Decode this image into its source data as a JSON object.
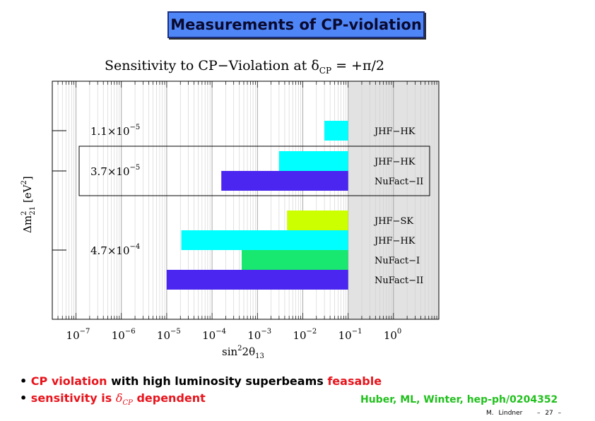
{
  "slide": {
    "title": "Measurements of CP-violation",
    "bullets": [
      {
        "red": "CP violation",
        "black": " with high luminosity superbeams ",
        "red2": "feasable"
      },
      {
        "red": "sensitivity is ",
        "math": "δ",
        "sub": "CP",
        "black": " dependent"
      }
    ],
    "reference": "Huber, ML, Winter, hep-ph/0204352",
    "footer": {
      "author": "M. Lindner",
      "page": "– 27 –"
    }
  },
  "chart_data": {
    "type": "bar",
    "orientation": "horizontal",
    "title": "Sensitivity to CP−Violation at δ",
    "title_sub": "CP",
    "title_rest": " = +π/2",
    "xlabel": "sin",
    "xlabel_sup": "2",
    "xlabel_mid": "2θ",
    "xlabel_sub": "13",
    "ylabel": "Δm",
    "ylabel_sup": "2",
    "ylabel_sub": "21",
    "ylabel_rest": " [eV",
    "ylabel_sup2": "2",
    "ylabel_end": "]",
    "x_scale": "log",
    "xlim": [
      3e-08,
      10
    ],
    "x_ticks": [
      {
        "value": 1e-07,
        "base": "10",
        "exp": "−7"
      },
      {
        "value": 1e-06,
        "base": "10",
        "exp": "−6"
      },
      {
        "value": 1e-05,
        "base": "10",
        "exp": "−5"
      },
      {
        "value": 0.0001,
        "base": "10",
        "exp": "−4"
      },
      {
        "value": 0.001,
        "base": "10",
        "exp": "−3"
      },
      {
        "value": 0.01,
        "base": "10",
        "exp": "−2"
      },
      {
        "value": 0.1,
        "base": "10",
        "exp": "−1"
      },
      {
        "value": 1,
        "base": "10",
        "exp": "0"
      }
    ],
    "shaded_region": {
      "from": 0.1,
      "to": 10,
      "color": "#e2e2e2"
    },
    "grid": true,
    "groups": [
      {
        "label": "1.1×10",
        "exp": "−5",
        "boxed": false,
        "bars": [
          {
            "name": "JHF−HK",
            "min": 0.03,
            "max": 0.1,
            "color": "#00ffff"
          }
        ]
      },
      {
        "label": "3.7×10",
        "exp": "−5",
        "boxed": true,
        "bars": [
          {
            "name": "JHF−HK",
            "min": 0.003,
            "max": 0.1,
            "color": "#00ffff"
          },
          {
            "name": "NuFact−II",
            "min": 0.00016,
            "max": 0.1,
            "color": "#4b25f0"
          }
        ]
      },
      {
        "label": "4.7×10",
        "exp": "−4",
        "boxed": false,
        "bars": [
          {
            "name": "JHF−SK",
            "min": 0.0045,
            "max": 0.1,
            "color": "#ccff00"
          },
          {
            "name": "JHF−HK",
            "min": 2.1e-05,
            "max": 0.1,
            "color": "#00ffff"
          },
          {
            "name": "NuFact−I",
            "min": 0.00045,
            "max": 0.1,
            "color": "#18e870"
          },
          {
            "name": "NuFact−II",
            "min": 1e-05,
            "max": 0.1,
            "color": "#4b25f0"
          }
        ]
      }
    ]
  },
  "colors": {
    "title_bg": "#4f86f7",
    "bullet_red": "#e8141c",
    "reference_green": "#22c01e"
  }
}
